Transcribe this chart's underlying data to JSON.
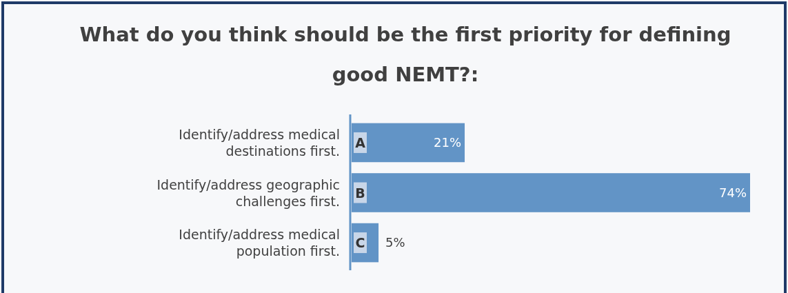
{
  "chart_data": {
    "type": "bar",
    "orientation": "horizontal",
    "title": "What do you think should be the first priority for defining good NEMT?:",
    "categories": [
      "Identify/address medical destinations first.",
      "Identify/address geographic challenges first.",
      "Identify/address medical population first."
    ],
    "values": [
      21,
      74,
      5
    ],
    "color": "#6294c6",
    "xlim": [
      0,
      74
    ],
    "tick_labels": "y",
    "value_labels": [
      "21%",
      "74%",
      "5%"
    ],
    "annotations": [
      {
        "text": "A",
        "y": "Identify/address medical destinations first."
      },
      {
        "text": "B",
        "y": "Identify/address geographic challenges first."
      },
      {
        "text": "C",
        "y": "Identify/address medical population first."
      }
    ]
  }
}
